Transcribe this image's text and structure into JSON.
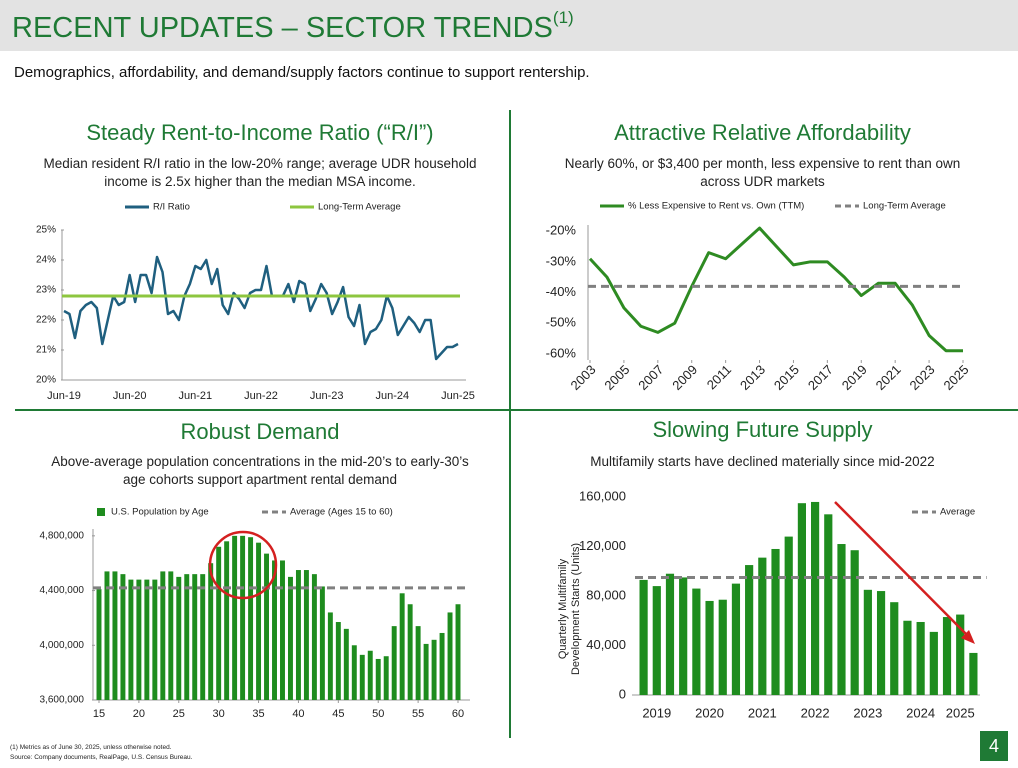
{
  "header": {
    "title": "RECENT UPDATES – SECTOR TRENDS",
    "footnote_ref": "(1)",
    "subtitle": "Demographics, affordability, and demand/supply factors continue to support rentership."
  },
  "footnotes": [
    "(1)    Metrics as of June 30, 2025, unless otherwise noted.",
    "Source: Company documents, RealPage, U.S. Census Bureau."
  ],
  "page_number": "4",
  "chart_data": [
    {
      "type": "line",
      "title": "Steady Rent-to-Income Ratio (“R/I”)",
      "subtitle": "Median resident R/I ratio in the low-20% range; average UDR household income is 2.5x higher than the median MSA income.",
      "categories": [
        "Jun-19",
        null,
        null,
        null,
        null,
        null,
        null,
        null,
        null,
        null,
        null,
        null,
        "Jun-20",
        null,
        null,
        null,
        null,
        null,
        null,
        null,
        null,
        null,
        null,
        null,
        "Jun-21",
        null,
        null,
        null,
        null,
        null,
        null,
        null,
        null,
        null,
        null,
        null,
        "Jun-22",
        null,
        null,
        null,
        null,
        null,
        null,
        null,
        null,
        null,
        null,
        null,
        "Jun-23",
        null,
        null,
        null,
        null,
        null,
        null,
        null,
        null,
        null,
        null,
        null,
        "Jun-24",
        null,
        null,
        null,
        null,
        null,
        null,
        null,
        null,
        null,
        null,
        null,
        "Jun-25"
      ],
      "series": [
        {
          "name": "R/I Ratio",
          "color": "#1f5f7f",
          "values": [
            22.3,
            22.2,
            21.4,
            22.3,
            22.5,
            22.6,
            22.4,
            21.2,
            22.0,
            22.8,
            22.5,
            22.6,
            23.5,
            22.6,
            23.5,
            23.5,
            22.9,
            24.1,
            23.6,
            22.2,
            22.3,
            22.0,
            22.8,
            23.2,
            23.8,
            23.7,
            24.0,
            23.2,
            23.7,
            22.5,
            22.2,
            22.9,
            22.7,
            22.4,
            22.9,
            23.0,
            23.0,
            23.8,
            22.8,
            22.8,
            22.8,
            23.2,
            22.6,
            23.3,
            23.2,
            22.3,
            22.7,
            23.2,
            22.9,
            22.2,
            22.6,
            23.1,
            22.1,
            21.8,
            22.5,
            21.2,
            21.6,
            21.7,
            22.0,
            22.8,
            22.4,
            21.5,
            21.8,
            22.1,
            21.9,
            21.6,
            22.0,
            22.0,
            20.7,
            20.9,
            21.1,
            21.1,
            21.2
          ]
        }
      ],
      "reference": {
        "name": "Long-Term Average",
        "value": 22.8,
        "color": "#8dc63f",
        "dashed": false
      },
      "ylim": [
        20,
        25
      ],
      "yticks": [
        {
          "value": 20,
          "label": "20%"
        },
        {
          "value": 21,
          "label": "21%"
        },
        {
          "value": 22,
          "label": "22%"
        },
        {
          "value": 23,
          "label": "23%"
        },
        {
          "value": 24,
          "label": "24%"
        },
        {
          "value": 25,
          "label": "25%"
        }
      ],
      "grid": false
    },
    {
      "type": "line",
      "title": "Attractive Relative Affordability",
      "subtitle": "Nearly 60%, or $3,400 per month, less expensive to rent than own across UDR markets",
      "x": [
        2003,
        2004,
        2005,
        2006,
        2007,
        2008,
        2009,
        2010,
        2011,
        2012,
        2013,
        2014,
        2015,
        2016,
        2017,
        2018,
        2019,
        2020,
        2021,
        2022,
        2023,
        2024,
        2025
      ],
      "series": [
        {
          "name": "% Less Expensive to Rent vs. Own (TTM)",
          "color": "#2e8b22",
          "values": [
            -29,
            -35,
            -45,
            -51,
            -53,
            -50,
            -38,
            -27,
            -29,
            -24,
            -19,
            -25,
            -31,
            -30,
            -30,
            -35,
            -41,
            -37,
            -37,
            -44,
            -54,
            -59,
            -59
          ]
        }
      ],
      "reference": {
        "name": "Long-Term Average",
        "value": -38,
        "color": "#808080",
        "dashed": true
      },
      "xlim": [
        2003,
        2025
      ],
      "xticks": [
        2003,
        2005,
        2007,
        2009,
        2011,
        2013,
        2015,
        2017,
        2019,
        2021,
        2023,
        2025
      ],
      "ylim": [
        -62,
        -18
      ],
      "yticks": [
        {
          "value": -60,
          "label": "-60%"
        },
        {
          "value": -50,
          "label": "-50%"
        },
        {
          "value": -40,
          "label": "-40%"
        },
        {
          "value": -30,
          "label": "-30%"
        },
        {
          "value": -20,
          "label": "-20%"
        }
      ],
      "grid": false
    },
    {
      "type": "bar",
      "title": "Robust Demand",
      "subtitle": "Above-average population concentrations in the mid-20’s to early-30’s age cohorts support apartment rental demand",
      "x": [
        15,
        16,
        17,
        18,
        19,
        20,
        21,
        22,
        23,
        24,
        25,
        26,
        27,
        28,
        29,
        30,
        31,
        32,
        33,
        34,
        35,
        36,
        37,
        38,
        39,
        40,
        41,
        42,
        43,
        44,
        45,
        46,
        47,
        48,
        49,
        50,
        51,
        52,
        53,
        54,
        55,
        56,
        57,
        58,
        59,
        60
      ],
      "series": [
        {
          "name": "U.S. Population by Age",
          "color": "#1e8c1e",
          "values": [
            4410000,
            4540000,
            4540000,
            4520000,
            4480000,
            4480000,
            4480000,
            4480000,
            4540000,
            4540000,
            4500000,
            4520000,
            4520000,
            4520000,
            4600000,
            4720000,
            4760000,
            4800000,
            4800000,
            4790000,
            4750000,
            4670000,
            4620000,
            4620000,
            4500000,
            4550000,
            4550000,
            4520000,
            4430000,
            4240000,
            4170000,
            4120000,
            4000000,
            3930000,
            3960000,
            3900000,
            3920000,
            4140000,
            4380000,
            4300000,
            4140000,
            4010000,
            4040000,
            4090000,
            4240000,
            4300000
          ]
        }
      ],
      "reference": {
        "name": "Average (Ages 15 to 60)",
        "value": 4420000,
        "color": "#808080",
        "dashed": true
      },
      "xlim": [
        14.5,
        60.5
      ],
      "xticks": [
        15,
        20,
        25,
        30,
        35,
        40,
        45,
        50,
        55,
        60
      ],
      "ylim": [
        3600000,
        4850000
      ],
      "yticks": [
        {
          "value": 3600000,
          "label": "3,600,000"
        },
        {
          "value": 4000000,
          "label": "4,000,000"
        },
        {
          "value": 4400000,
          "label": "4,400,000"
        },
        {
          "value": 4800000,
          "label": "4,800,000"
        }
      ],
      "grid": false
    },
    {
      "type": "bar",
      "title": "Slowing Future Supply",
      "subtitle": "Multifamily starts have declined materially since mid-2022",
      "ylabel": "Quarterly Multifamily Development Starts (Units)",
      "categories": [
        null,
        "2019",
        null,
        null,
        null,
        "2020",
        null,
        null,
        null,
        "2021",
        null,
        null,
        null,
        "2022",
        null,
        null,
        null,
        "2023",
        null,
        null,
        null,
        "2024",
        null,
        null,
        "2025",
        null
      ],
      "series": [
        {
          "color": "#1e8c1e",
          "values": [
            93000,
            88000,
            98000,
            95000,
            86000,
            76000,
            77000,
            90000,
            105000,
            111000,
            118000,
            128000,
            155000,
            156000,
            146000,
            122000,
            117000,
            85000,
            84000,
            75000,
            60000,
            59000,
            51000,
            63000,
            65000,
            34000
          ]
        }
      ],
      "reference": {
        "name": "Average",
        "value": 95000,
        "color": "#808080",
        "dashed": true
      },
      "ylim": [
        0,
        160000
      ],
      "yticks": [
        0,
        {
          "value": 40000,
          "label": "40,000"
        },
        {
          "value": 80000,
          "label": "80,000"
        },
        {
          "value": 120000,
          "label": "120,000"
        },
        {
          "value": 160000,
          "label": "160,000"
        }
      ],
      "grid": false
    }
  ]
}
